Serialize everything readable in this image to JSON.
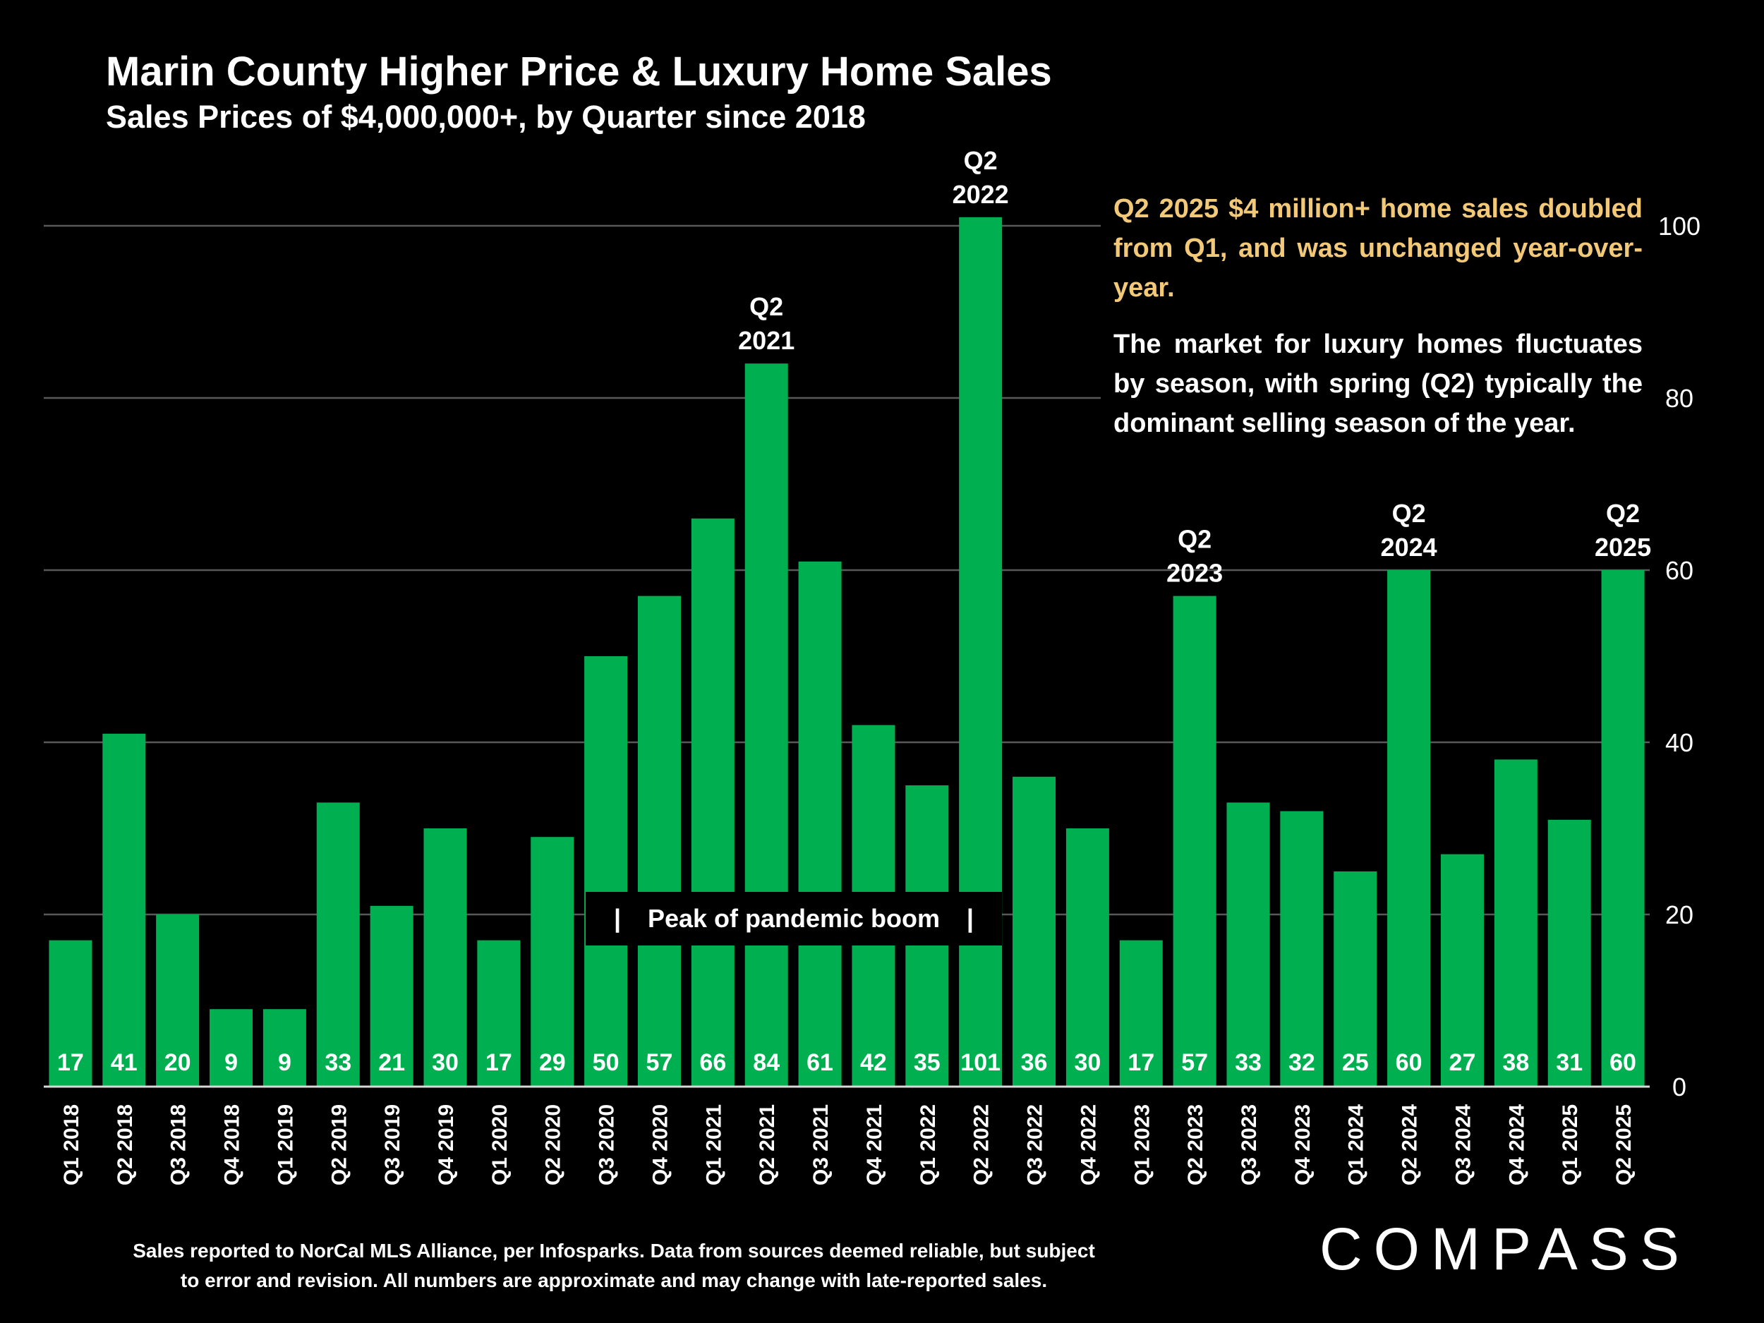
{
  "title": "Marin County Higher Price & Luxury Home Sales",
  "subtitle": "Sales Prices of $4,000,000+, by Quarter since 2018",
  "callouts": {
    "highlight": "Q2 2025 $4 million+ home sales doubled from Q1, and was unchanged year-over-year.",
    "note": "The market for luxury homes fluctuates by season, with spring (Q2) typically the dominant selling season of the year."
  },
  "peak_annotation": {
    "left_bar": "|",
    "label": "Peak of pandemic boom",
    "right_bar": "|"
  },
  "footnote": {
    "line1": "Sales reported to NorCal MLS Alliance, per Infosparks. Data from sources deemed reliable, but subject",
    "line2": "to error and revision. All numbers are approximate and may change with late-reported sales."
  },
  "logo": "COMPASS",
  "colors": {
    "bar": "#00b050",
    "background": "#000000",
    "grid": "#595959",
    "highlight_text": "#f2c879"
  },
  "chart_data": {
    "type": "bar",
    "categories": [
      "Q1 2018",
      "Q2 2018",
      "Q3 2018",
      "Q4 2018",
      "Q1 2019",
      "Q2 2019",
      "Q3 2019",
      "Q4 2019",
      "Q1 2020",
      "Q2 2020",
      "Q3 2020",
      "Q4 2020",
      "Q1 2021",
      "Q2 2021",
      "Q3 2021",
      "Q4 2021",
      "Q1 2022",
      "Q2 2022",
      "Q3 2022",
      "Q4 2022",
      "Q1 2023",
      "Q2 2023",
      "Q3 2023",
      "Q4 2023",
      "Q1 2024",
      "Q2 2024",
      "Q3 2024",
      "Q4 2024",
      "Q1 2025",
      "Q2 2025"
    ],
    "values": [
      17,
      41,
      20,
      9,
      9,
      33,
      21,
      30,
      17,
      29,
      50,
      57,
      66,
      84,
      61,
      42,
      35,
      101,
      36,
      30,
      17,
      57,
      33,
      32,
      25,
      60,
      27,
      38,
      31,
      60
    ],
    "ylim": [
      0,
      100
    ],
    "yticks": [
      0,
      20,
      40,
      60,
      80,
      100
    ],
    "y_axis_side": "right",
    "grid": true,
    "title": "Marin County Higher Price & Luxury Home Sales",
    "xlabel": "",
    "ylabel": "",
    "peak_labels": [
      {
        "index": 13,
        "line1": "Q2",
        "line2": "2021"
      },
      {
        "index": 17,
        "line1": "Q2",
        "line2": "2022"
      },
      {
        "index": 21,
        "line1": "Q2",
        "line2": "2023"
      },
      {
        "index": 25,
        "line1": "Q2",
        "line2": "2024"
      },
      {
        "index": 29,
        "line1": "Q2",
        "line2": "2025"
      }
    ]
  }
}
